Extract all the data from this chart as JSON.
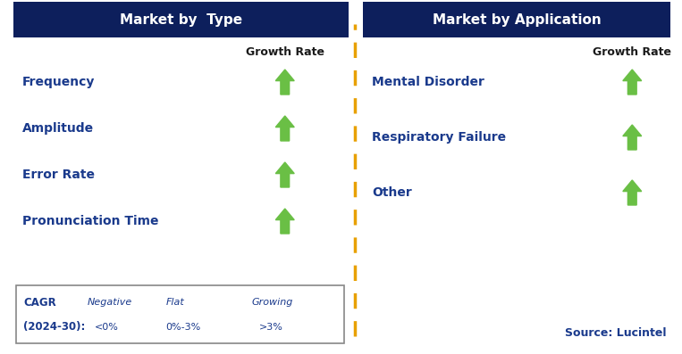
{
  "header_bg_color": "#0d1f5c",
  "header_text_color": "#ffffff",
  "left_header": "Market by  Type",
  "right_header": "Market by Application",
  "left_items": [
    "Frequency",
    "Amplitude",
    "Error Rate",
    "Pronunciation Time"
  ],
  "right_items": [
    "Mental Disorder",
    "Respiratory Failure",
    "Other"
  ],
  "item_text_color": "#1a3a8c",
  "growth_rate_label": "Growth Rate",
  "growth_rate_color": "#1a1a1a",
  "arrow_up_color": "#6abf45",
  "arrow_down_color": "#aa0000",
  "arrow_flat_color": "#e8a000",
  "divider_color": "#e8a000",
  "legend_border_color": "#888888",
  "legend_text_color": "#1a3a8c",
  "source_text": "Source: Lucintel",
  "source_color": "#1a3a8c",
  "neg_label": "Negative",
  "neg_val": "<0%",
  "flat_label": "Flat",
  "flat_val": "0%-3%",
  "grow_label": "Growing",
  "grow_val": ">3%"
}
